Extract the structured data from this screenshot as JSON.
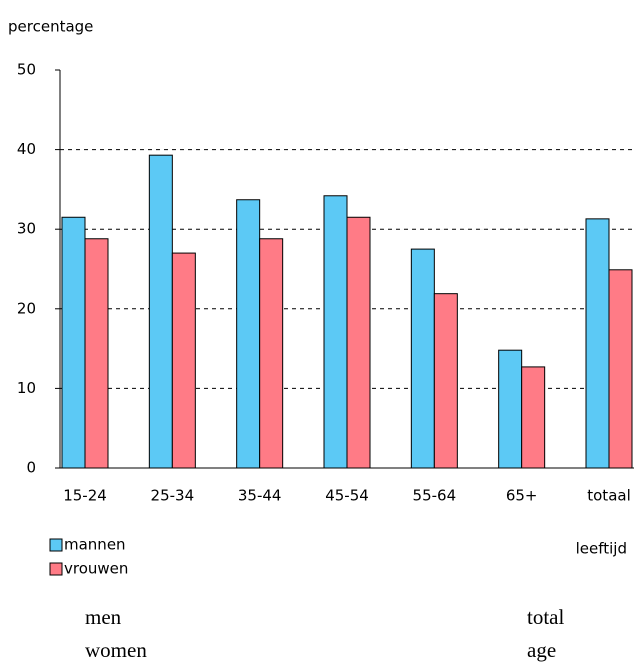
{
  "chart_data": {
    "type": "bar",
    "y_label": "percentage",
    "x_label": "leeftijd",
    "categories": [
      "15-24",
      "25-34",
      "35-44",
      "45-54",
      "55-64",
      "65+",
      "totaal"
    ],
    "series": [
      {
        "name": "mannen",
        "color": "#5cc9f5",
        "values": [
          31.5,
          39.3,
          33.7,
          34.2,
          27.5,
          14.8,
          31.3
        ]
      },
      {
        "name": "vrouwen",
        "color": "#ff7b86",
        "values": [
          28.8,
          27.0,
          28.8,
          31.5,
          21.9,
          12.7,
          24.9
        ]
      }
    ],
    "ylim": [
      0,
      50
    ],
    "yticks": [
      0,
      10,
      20,
      30,
      40,
      50
    ],
    "grid": true,
    "annotations": [
      "men",
      "women",
      "total",
      "age"
    ]
  }
}
